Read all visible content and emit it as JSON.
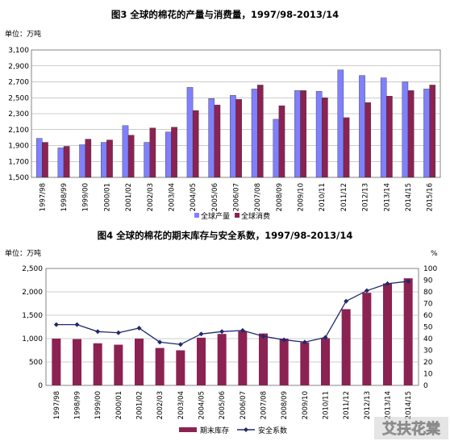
{
  "watermark": "艾扶花棠",
  "chart_data": [
    {
      "type": "bar",
      "title": "图3 全球的棉花的产量与消费量，1997/98-2013/14",
      "unit_label": "单位：万吨",
      "categories": [
        "1997/98",
        "1998/99",
        "1999/00",
        "2000/01",
        "2001/02",
        "2002/03",
        "2003/04",
        "2004/05",
        "2005/06",
        "2006/07",
        "2007/08",
        "2008/09",
        "2009/10",
        "2010/11",
        "2011/12",
        "2012/13",
        "2013/14",
        "2014/15",
        "2015/16"
      ],
      "series": [
        {
          "name": "全球产量",
          "color": "#8080ff",
          "values": [
            1990,
            1870,
            1910,
            1940,
            2150,
            1940,
            2070,
            2630,
            2490,
            2530,
            2610,
            2230,
            2590,
            2580,
            2850,
            2780,
            2750,
            2700,
            2610
          ]
        },
        {
          "name": "全球消费",
          "color": "#8b2252",
          "values": [
            1940,
            1890,
            1980,
            1970,
            2030,
            2120,
            2130,
            2340,
            2410,
            2480,
            2660,
            2400,
            2590,
            2500,
            2250,
            2440,
            2520,
            2590,
            2660
          ]
        }
      ],
      "ylim": [
        1500,
        3100
      ],
      "yticks": [
        "1,500",
        "1,700",
        "1,900",
        "2,100",
        "2,300",
        "2,500",
        "2,700",
        "2,900",
        "3,100"
      ],
      "grid": true,
      "legend": "bottom"
    },
    {
      "type": "bar+line",
      "title": "图4 全球的棉花的期末库存与安全系数，1997/98-2013/14",
      "unit_label_left": "单位：万吨",
      "unit_label_right": "%",
      "categories": [
        "1997/98",
        "1998/99",
        "1999/00",
        "2000/01",
        "2001/02",
        "2002/03",
        "2003/04",
        "2004/05",
        "2005/06",
        "2006/07",
        "2007/08",
        "2008/09",
        "2009/10",
        "2010/11",
        "2011/12",
        "2012/13",
        "2013/14",
        "2014/15"
      ],
      "series": [
        {
          "name": "期末库存",
          "type": "bar",
          "axis": "left",
          "color": "#8b2252",
          "values": [
            1000,
            990,
            900,
            870,
            1000,
            800,
            750,
            1020,
            1100,
            1160,
            1110,
            1000,
            920,
            1010,
            1630,
            1980,
            2180,
            2290
          ]
        },
        {
          "name": "安全系数",
          "type": "line",
          "axis": "right",
          "color": "#1f2a6b",
          "values": [
            52,
            52,
            46,
            45,
            49,
            37,
            35,
            44,
            46,
            47,
            42,
            39,
            37,
            41,
            72,
            81,
            87,
            89
          ]
        }
      ],
      "ylim_left": [
        0,
        2500
      ],
      "yticks_left": [
        "0",
        "500",
        "1,000",
        "1,500",
        "2,000",
        "2,500"
      ],
      "ylim_right": [
        0,
        100
      ],
      "yticks_right": [
        "0",
        "10",
        "20",
        "30",
        "40",
        "50",
        "60",
        "70",
        "80",
        "90",
        "100"
      ],
      "grid": true,
      "legend": "bottom"
    }
  ]
}
